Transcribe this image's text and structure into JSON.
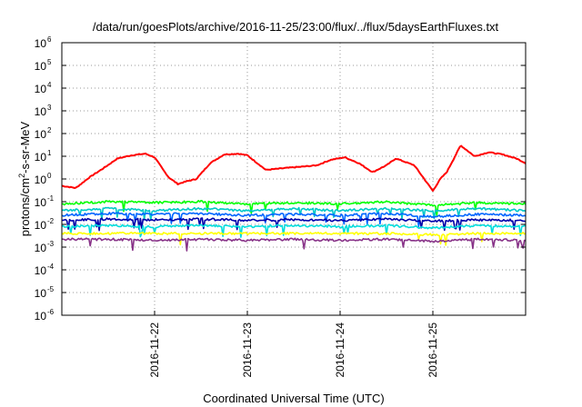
{
  "chart_data": {
    "type": "line",
    "title": "/data/run/goesPlots/archive/2016-11-25/23:00/flux/../flux/5daysEarthFluxes.txt",
    "xlabel": "Coordinated Universal Time (UTC)",
    "ylabel": "protons/cm2-s-sr-MeV",
    "y_scale": "log",
    "ylim": [
      1e-06,
      1000000.0
    ],
    "y_ticks": [
      {
        "base": "10",
        "exp": "-6",
        "value": 1e-06
      },
      {
        "base": "10",
        "exp": "-5",
        "value": 1e-05
      },
      {
        "base": "10",
        "exp": "-4",
        "value": 0.0001
      },
      {
        "base": "10",
        "exp": "-3",
        "value": 0.001
      },
      {
        "base": "10",
        "exp": "-2",
        "value": 0.01
      },
      {
        "base": "10",
        "exp": "-1",
        "value": 0.1
      },
      {
        "base": "10",
        "exp": "0",
        "value": 1
      },
      {
        "base": "10",
        "exp": "1",
        "value": 10
      },
      {
        "base": "10",
        "exp": "2",
        "value": 100
      },
      {
        "base": "10",
        "exp": "3",
        "value": 1000
      },
      {
        "base": "10",
        "exp": "4",
        "value": 10000
      },
      {
        "base": "10",
        "exp": "5",
        "value": 100000
      },
      {
        "base": "10",
        "exp": "6",
        "value": 1000000
      }
    ],
    "x_range": [
      "2016-11-21 00:00",
      "2016-11-26 00:00"
    ],
    "x_ticks": [
      "2016-11-22",
      "2016-11-23",
      "2016-11-24",
      "2016-11-25"
    ],
    "grid": true,
    "series": [
      {
        "color": "#ff0000",
        "x_days": [
          0,
          0.15,
          0.3,
          0.45,
          0.6,
          0.75,
          0.9,
          1.0,
          1.08,
          1.15,
          1.25,
          1.35,
          1.45,
          1.6,
          1.75,
          1.9,
          2.0,
          2.2,
          2.4,
          2.6,
          2.75,
          2.9,
          3.05,
          3.2,
          3.35,
          3.5,
          3.6,
          3.8,
          4.0,
          4.08,
          4.15,
          4.3,
          4.45,
          4.6,
          4.75,
          4.9,
          5.0
        ],
        "values": [
          0.5,
          0.4,
          1.2,
          3,
          8,
          11,
          13,
          9,
          3,
          1.2,
          0.6,
          0.8,
          1.0,
          5,
          12,
          13,
          11,
          2.5,
          3,
          3.5,
          4,
          7,
          9,
          5,
          2,
          4,
          8,
          4,
          0.3,
          1.0,
          2.0,
          30,
          10,
          15,
          12,
          8,
          5
        ]
      },
      {
        "color": "#00ff00",
        "x_days": [
          0,
          0.5,
          1.0,
          1.5,
          2.0,
          2.5,
          3.0,
          3.5,
          4.0,
          4.5,
          5.0
        ],
        "values": [
          0.08,
          0.1,
          0.09,
          0.1,
          0.08,
          0.09,
          0.08,
          0.1,
          0.07,
          0.09,
          0.08
        ]
      },
      {
        "color": "#00c8c8",
        "x_days": [
          0,
          0.5,
          1.0,
          1.5,
          2.0,
          2.5,
          3.0,
          3.5,
          4.0,
          4.5,
          5.0
        ],
        "values": [
          0.04,
          0.05,
          0.04,
          0.05,
          0.04,
          0.05,
          0.04,
          0.05,
          0.04,
          0.05,
          0.04
        ]
      },
      {
        "color": "#0066ff",
        "x_days": [
          0,
          0.5,
          1.0,
          1.5,
          2.0,
          2.5,
          3.0,
          3.5,
          4.0,
          4.5,
          5.0
        ],
        "values": [
          0.025,
          0.03,
          0.028,
          0.03,
          0.025,
          0.028,
          0.025,
          0.03,
          0.022,
          0.028,
          0.025
        ]
      },
      {
        "color": "#0000aa",
        "x_days": [
          0,
          0.5,
          1.0,
          1.5,
          2.0,
          2.5,
          3.0,
          3.5,
          4.0,
          4.5,
          5.0
        ],
        "values": [
          0.015,
          0.017,
          0.016,
          0.017,
          0.015,
          0.016,
          0.015,
          0.017,
          0.014,
          0.016,
          0.015
        ]
      },
      {
        "color": "#00dddd",
        "x_days": [
          0,
          0.5,
          1.0,
          1.5,
          2.0,
          2.5,
          3.0,
          3.5,
          4.0,
          4.5,
          5.0
        ],
        "values": [
          0.008,
          0.009,
          0.008,
          0.009,
          0.008,
          0.009,
          0.008,
          0.009,
          0.007,
          0.009,
          0.008
        ]
      },
      {
        "color": "#ffff00",
        "x_days": [
          0,
          0.5,
          1.0,
          1.5,
          2.0,
          2.5,
          3.0,
          3.5,
          4.0,
          4.5,
          5.0
        ],
        "values": [
          0.004,
          0.004,
          0.004,
          0.004,
          0.004,
          0.004,
          0.004,
          0.004,
          0.0035,
          0.004,
          0.004
        ]
      },
      {
        "color": "#883388",
        "x_days": [
          0,
          0.5,
          1.0,
          1.5,
          2.0,
          2.5,
          3.0,
          3.5,
          4.0,
          4.5,
          5.0
        ],
        "values": [
          0.0022,
          0.0022,
          0.002,
          0.0022,
          0.002,
          0.0022,
          0.002,
          0.0022,
          0.0018,
          0.0022,
          0.002
        ]
      }
    ]
  }
}
